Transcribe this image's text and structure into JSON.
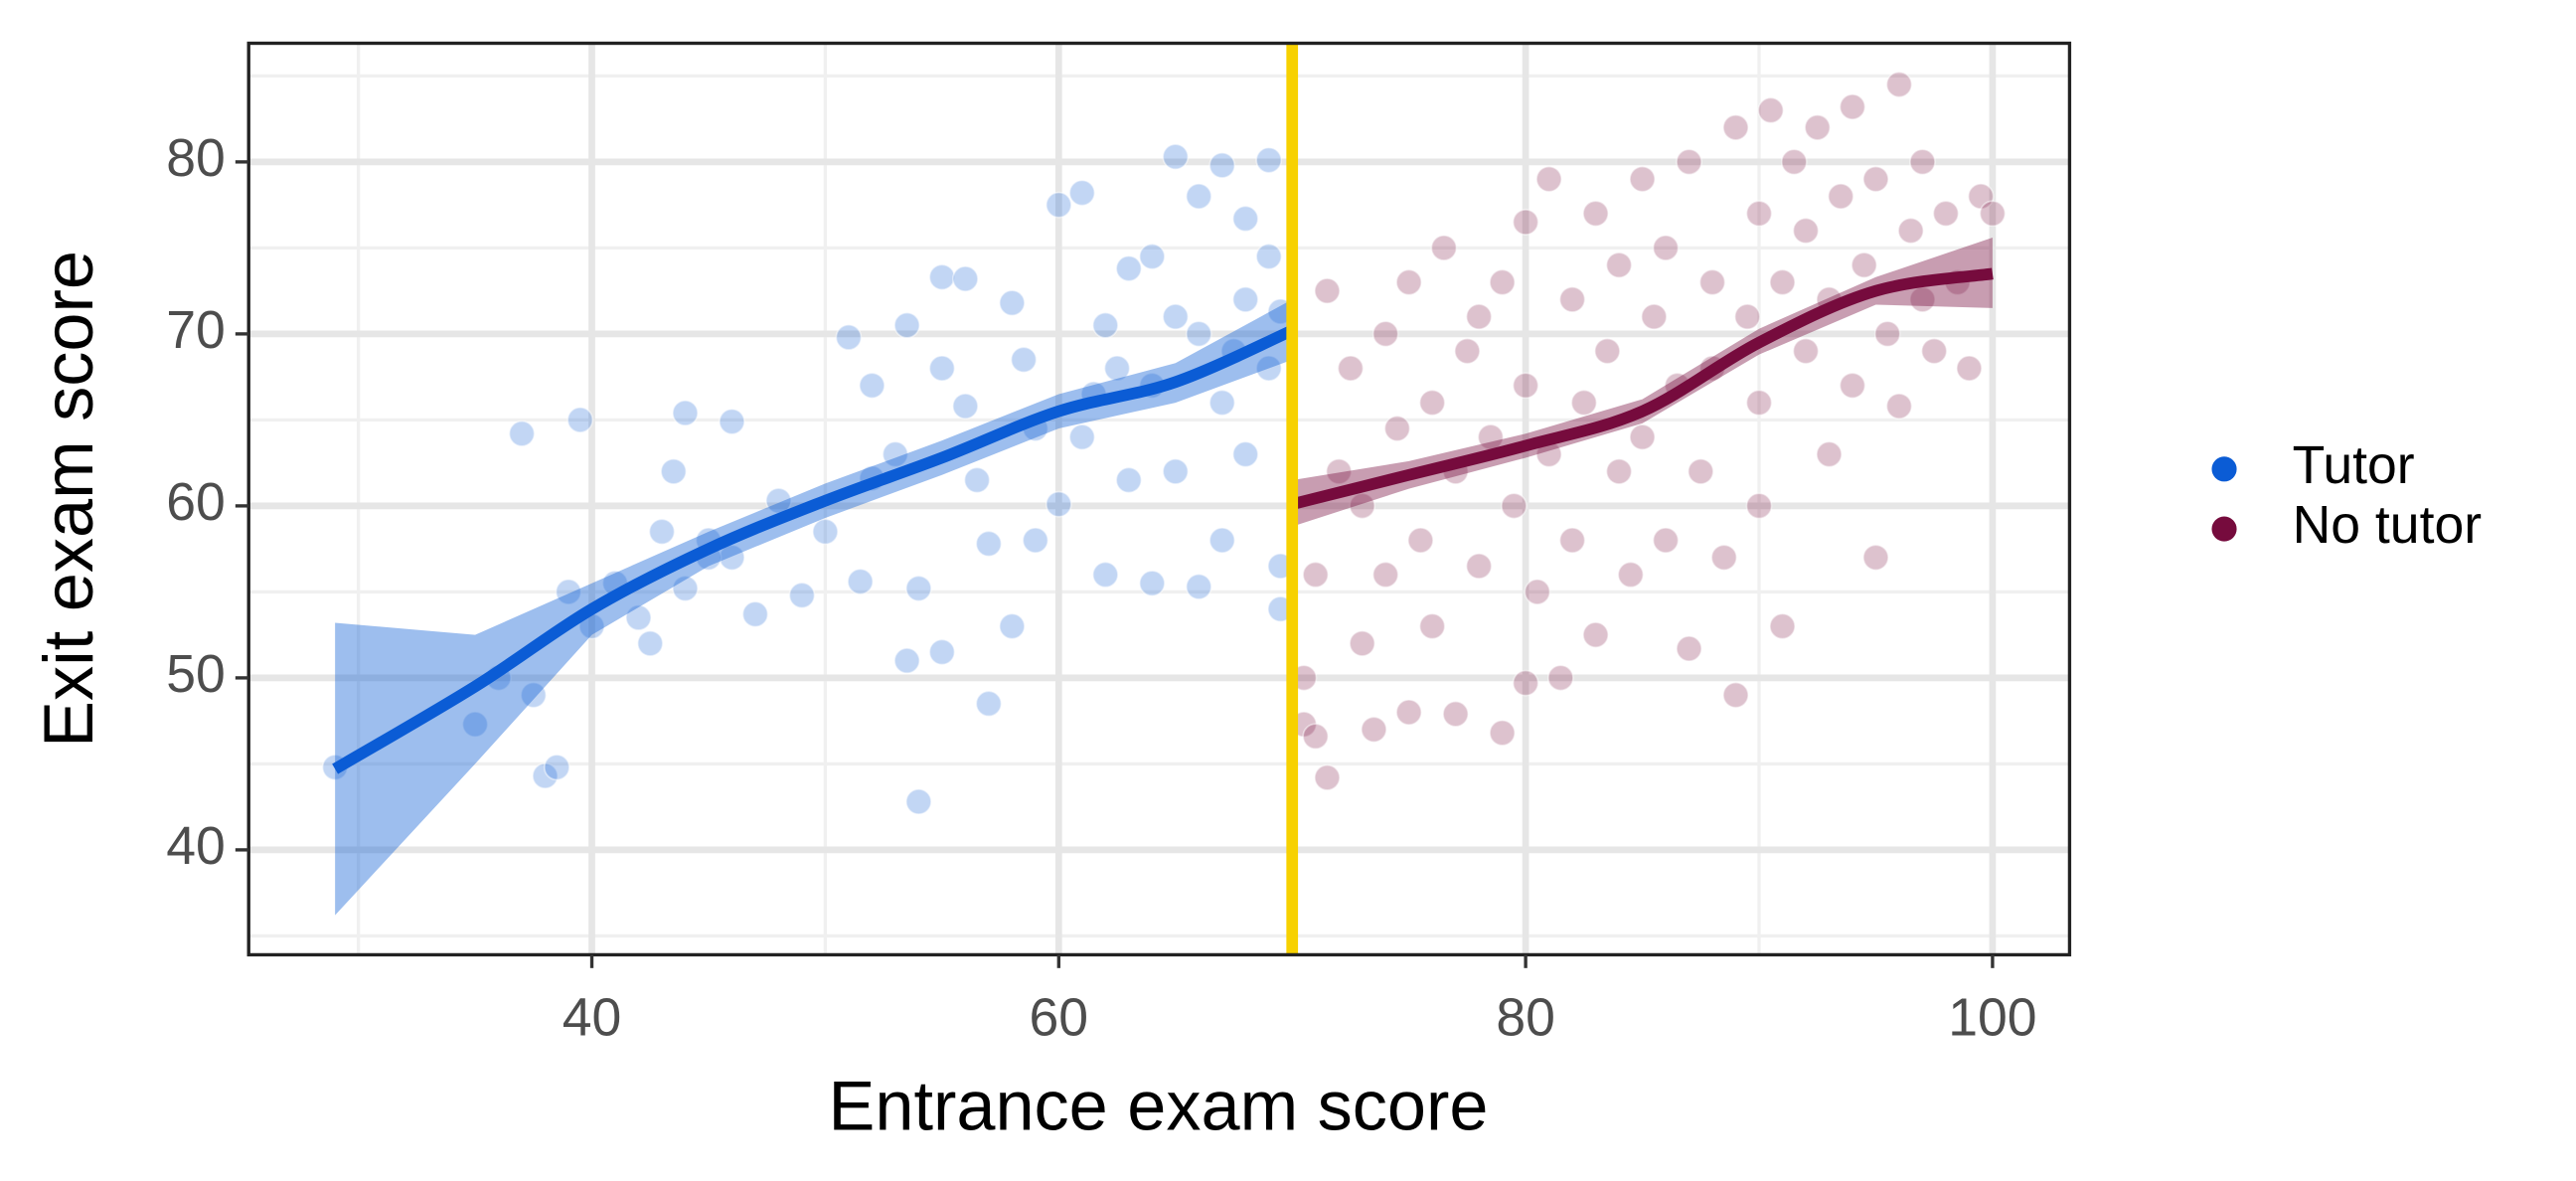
{
  "chart_data": {
    "type": "scatter",
    "x_label": "Entrance exam score",
    "y_label": "Exit exam score",
    "xlim": [
      25.3,
      103.3
    ],
    "ylim": [
      33.9,
      86.9
    ],
    "xticks": [
      40,
      60,
      80,
      100
    ],
    "yticks": [
      40,
      50,
      60,
      70,
      80
    ],
    "x_minor_ticks": [
      30,
      50,
      70,
      90
    ],
    "y_minor_ticks": [
      35,
      45,
      55,
      65,
      75,
      85
    ],
    "grid": true,
    "legend": "right",
    "cutoff": 70,
    "cutoff_color": "#f7d100",
    "series": [
      {
        "name": "Tutor",
        "color": "#0b5cd5",
        "x": [
          29,
          37,
          39.5,
          35,
          36,
          37.5,
          38,
          38.5,
          39,
          40,
          41,
          42,
          42.5,
          43,
          43.5,
          44,
          44,
          45,
          46,
          46,
          47,
          48,
          49,
          51,
          51.5,
          52,
          53,
          53.5,
          53.5,
          54,
          54,
          55,
          55,
          55,
          56,
          56,
          57,
          57,
          58,
          58,
          58.5,
          59,
          60,
          60,
          61,
          61,
          62,
          62,
          63,
          63,
          64,
          64,
          65,
          65,
          65,
          66,
          66,
          67,
          67,
          67,
          68,
          68,
          68,
          69,
          69,
          69,
          69.5,
          69.5,
          69.5,
          45,
          50,
          52,
          56.5,
          59,
          61.5,
          62.5,
          64,
          66,
          67.5
        ],
        "y": [
          44.8,
          64.2,
          65,
          47.3,
          50,
          49,
          44.3,
          44.8,
          55,
          53,
          55.5,
          53.5,
          52,
          58.5,
          62,
          65.4,
          55.2,
          58,
          64.9,
          57,
          53.7,
          60.3,
          54.8,
          69.8,
          55.6,
          67,
          63,
          70.5,
          51,
          55.2,
          42.8,
          73.3,
          68,
          51.5,
          65.8,
          73.2,
          57.8,
          48.5,
          71.8,
          53,
          68.5,
          58,
          77.5,
          60.1,
          78.2,
          64,
          56,
          70.5,
          73.8,
          61.5,
          67,
          55.5,
          80.3,
          71,
          62,
          78,
          55.3,
          79.8,
          66,
          58,
          76.7,
          72,
          63,
          80.1,
          74.5,
          68,
          56.5,
          54,
          71.3,
          57,
          58.5,
          61.6,
          61.5,
          64.5,
          66.5,
          68,
          74.5,
          70,
          69
        ],
        "fit": {
          "x": [
            29,
            35,
            40,
            45,
            50,
            55,
            60,
            65,
            70
          ],
          "values": [
            44.7,
            49.5,
            54,
            57.5,
            60.3,
            62.8,
            65.5,
            67.2,
            70.2
          ],
          "lower": [
            36.2,
            45,
            52.5,
            56.5,
            59.3,
            61.8,
            64.5,
            66,
            68.5
          ],
          "upper": [
            53.2,
            52.5,
            55.5,
            58.5,
            61.3,
            63.8,
            66.5,
            68.3,
            72
          ]
        }
      },
      {
        "name": "No tutor",
        "color": "#760b3d",
        "x": [
          70.5,
          70.5,
          71,
          71.5,
          71,
          71.5,
          72,
          72.5,
          73,
          73,
          73.5,
          74,
          74,
          74.5,
          75,
          75,
          75.5,
          76,
          76,
          76.5,
          77,
          77,
          77.5,
          78,
          78,
          78.5,
          79,
          79,
          79.5,
          80,
          80,
          80,
          80.5,
          81,
          81,
          81.5,
          82,
          82,
          82.5,
          83,
          83,
          83.5,
          84,
          84,
          84.5,
          85,
          85,
          85.5,
          86,
          86,
          86.5,
          87,
          87,
          87.5,
          88,
          88,
          88.5,
          89,
          89,
          89.5,
          90,
          90,
          90,
          90.5,
          91,
          91,
          91.5,
          92,
          92,
          92.5,
          93,
          93,
          93.5,
          94,
          94,
          94.5,
          95,
          95,
          95.5,
          96,
          96,
          96.5,
          97,
          97,
          97.5,
          98,
          98.5,
          99,
          99.5,
          100
        ],
        "y": [
          50,
          47.3,
          46.6,
          44.2,
          56,
          72.5,
          62,
          68,
          52,
          60,
          47,
          70,
          56,
          64.5,
          48,
          73,
          58,
          66,
          53,
          75,
          62,
          47.9,
          69,
          56.5,
          71,
          64,
          46.8,
          73,
          60,
          76.5,
          49.7,
          67,
          55,
          63,
          79,
          50,
          72,
          58,
          66,
          77,
          52.5,
          69,
          62,
          74,
          56,
          79,
          64,
          71,
          58,
          75,
          67,
          51.7,
          80,
          62,
          73,
          68,
          57,
          82,
          49,
          71,
          77,
          60,
          66,
          83,
          73,
          53,
          80,
          69,
          76,
          82,
          63,
          72,
          78,
          67,
          83.2,
          74,
          57,
          79,
          70,
          84.5,
          65.8,
          76,
          72,
          80,
          69,
          77,
          73,
          68,
          78,
          77
        ],
        "fit": {
          "x": [
            70,
            75,
            80,
            85,
            90,
            95,
            100
          ],
          "values": [
            60.1,
            61.8,
            63.5,
            65.5,
            69.5,
            72.5,
            73.5
          ],
          "lower": [
            58.8,
            61,
            62.8,
            64.8,
            68.8,
            71.7,
            71.5
          ],
          "upper": [
            61.5,
            62.6,
            64.2,
            66.2,
            70.3,
            73.3,
            75.6
          ]
        }
      }
    ]
  }
}
